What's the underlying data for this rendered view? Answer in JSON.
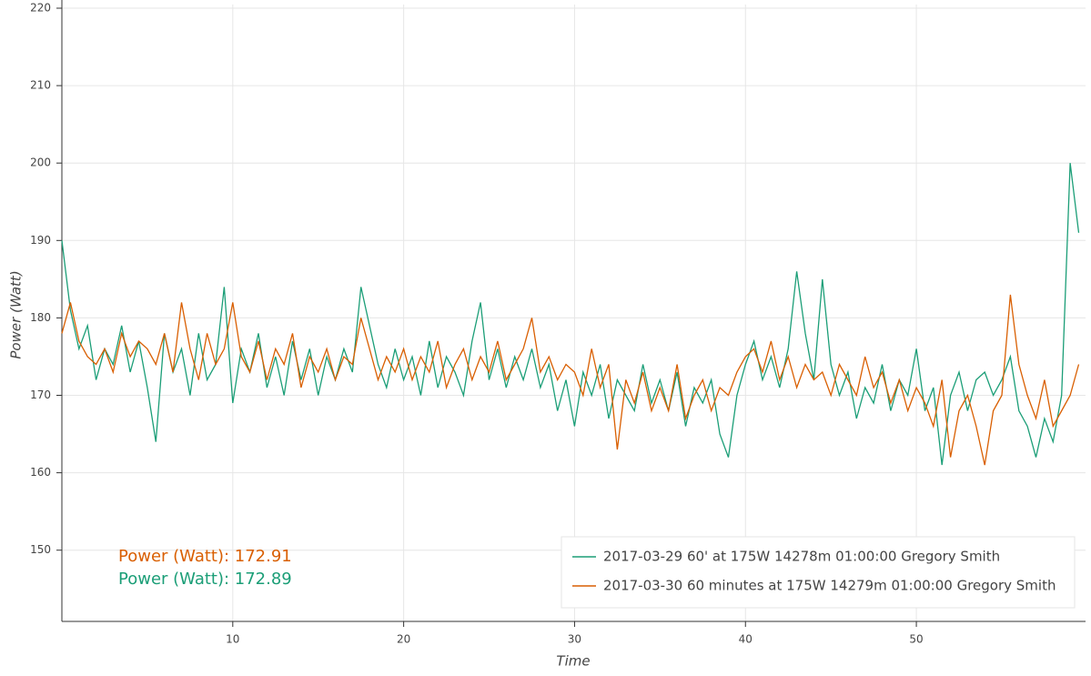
{
  "chart_data": {
    "type": "line",
    "xlabel": "Time",
    "ylabel": "Power (Watt)",
    "xlim": [
      0,
      59.9
    ],
    "ylim": [
      140.8,
      220
    ],
    "xticks": [
      10,
      20,
      30,
      40,
      50
    ],
    "yticks": [
      150,
      160,
      170,
      180,
      190,
      200,
      210,
      220
    ],
    "grid": true,
    "legend": "bottom_right",
    "x": [
      0,
      0.5,
      1,
      1.5,
      2,
      2.5,
      3,
      3.5,
      4,
      4.5,
      5,
      5.5,
      6,
      6.5,
      7,
      7.5,
      8,
      8.5,
      9,
      9.5,
      10,
      10.5,
      11,
      11.5,
      12,
      12.5,
      13,
      13.5,
      14,
      14.5,
      15,
      15.5,
      16,
      16.5,
      17,
      17.5,
      18,
      18.5,
      19,
      19.5,
      20,
      20.5,
      21,
      21.5,
      22,
      22.5,
      23,
      23.5,
      24,
      24.5,
      25,
      25.5,
      26,
      26.5,
      27,
      27.5,
      28,
      28.5,
      29,
      29.5,
      30,
      30.5,
      31,
      31.5,
      32,
      32.5,
      33,
      33.5,
      34,
      34.5,
      35,
      35.5,
      36,
      36.5,
      37,
      37.5,
      38,
      38.5,
      39,
      39.5,
      40,
      40.5,
      41,
      41.5,
      42,
      42.5,
      43,
      43.5,
      44,
      44.5,
      45,
      45.5,
      46,
      46.5,
      47,
      47.5,
      48,
      48.5,
      49,
      49.5,
      50,
      50.5,
      51,
      51.5,
      52,
      52.5,
      53,
      53.5,
      54,
      54.5,
      55,
      55.5,
      56,
      56.5,
      57,
      57.5,
      58,
      58.5,
      59,
      59.5
    ],
    "series": [
      {
        "name": "2017-03-29 60' at 175W 14278m 01:00:00 Gregory Smith",
        "color": "#1b9e77",
        "values": [
          190,
          181,
          176,
          179,
          172,
          176,
          174,
          179,
          173,
          177,
          171,
          164,
          178,
          173,
          176,
          170,
          178,
          172,
          174,
          184,
          169,
          176,
          173,
          178,
          171,
          175,
          170,
          177,
          172,
          176,
          170,
          175,
          172,
          176,
          173,
          184,
          179,
          174,
          171,
          176,
          172,
          175,
          170,
          177,
          171,
          175,
          173,
          170,
          177,
          182,
          172,
          176,
          171,
          175,
          172,
          176,
          171,
          174,
          168,
          172,
          166,
          173,
          170,
          174,
          167,
          172,
          170,
          168,
          174,
          169,
          172,
          168,
          173,
          166,
          171,
          169,
          172,
          165,
          162,
          170,
          174,
          177,
          172,
          175,
          171,
          176,
          186,
          178,
          172,
          185,
          174,
          170,
          173,
          167,
          171,
          169,
          174,
          168,
          172,
          170,
          176,
          168,
          171,
          161,
          170,
          173,
          168,
          172,
          173,
          170,
          172,
          175,
          168,
          166,
          162,
          167,
          164,
          170,
          200,
          191
        ]
      },
      {
        "name": "2017-03-30 60 minutes at 175W 14279m 01:00:00 Gregory Smith",
        "color": "#d95f02",
        "values": [
          178,
          182,
          177,
          175,
          174,
          176,
          173,
          178,
          175,
          177,
          176,
          174,
          178,
          173,
          182,
          176,
          172,
          178,
          174,
          176,
          182,
          175,
          173,
          177,
          172,
          176,
          174,
          178,
          171,
          175,
          173,
          176,
          172,
          175,
          174,
          180,
          176,
          172,
          175,
          173,
          176,
          172,
          175,
          173,
          177,
          171,
          174,
          176,
          172,
          175,
          173,
          177,
          172,
          174,
          176,
          180,
          173,
          175,
          172,
          174,
          173,
          170,
          176,
          171,
          174,
          163,
          172,
          169,
          173,
          168,
          171,
          168,
          174,
          167,
          170,
          172,
          168,
          171,
          170,
          173,
          175,
          176,
          173,
          177,
          172,
          175,
          171,
          174,
          172,
          173,
          170,
          174,
          172,
          170,
          175,
          171,
          173,
          169,
          172,
          168,
          171,
          169,
          166,
          172,
          162,
          168,
          170,
          166,
          161,
          168,
          170,
          183,
          174,
          170,
          167,
          172,
          166,
          168,
          170,
          174
        ]
      }
    ],
    "annotations": [
      {
        "text": "Power (Watt): 172.91",
        "color": "#d95f02"
      },
      {
        "text": "Power (Watt): 172.89",
        "color": "#1b9e77"
      }
    ]
  }
}
